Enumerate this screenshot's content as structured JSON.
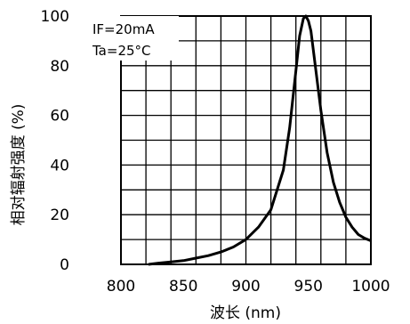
{
  "chart_data": {
    "type": "line",
    "xlabel": "波长 (nm)",
    "ylabel": "相对辐射强度 (%)",
    "xlim": [
      800,
      1000
    ],
    "ylim": [
      0,
      100
    ],
    "x_ticks": [
      "800",
      "850",
      "900",
      "950",
      "1000"
    ],
    "y_ticks": [
      "0",
      "20",
      "40",
      "60",
      "80",
      "100"
    ],
    "grid": true,
    "annotations": [
      "IF=20mA",
      "Ta=25°C"
    ],
    "series": [
      {
        "x": [
          822,
          830,
          840,
          850,
          860,
          870,
          880,
          890,
          900,
          910,
          920,
          930,
          935,
          940,
          943,
          946,
          948,
          950,
          952,
          955,
          960,
          965,
          970,
          975,
          980,
          985,
          990,
          995,
          1000
        ],
        "y": [
          0,
          0.5,
          1,
          1.5,
          2.5,
          3.5,
          5,
          7,
          10,
          15,
          22,
          38,
          55,
          78,
          92,
          99,
          100,
          98,
          94,
          82,
          62,
          45,
          33,
          25,
          19,
          15,
          12,
          10.5,
          9.5
        ]
      }
    ]
  }
}
